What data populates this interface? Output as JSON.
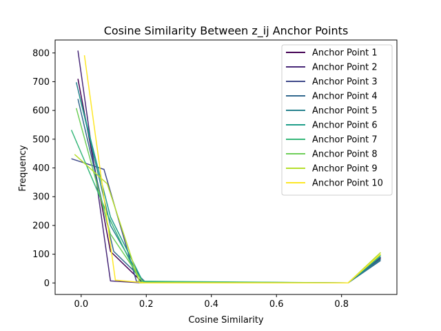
{
  "chart_data": {
    "type": "line",
    "title": "Cosine Similarity Between z_ij Anchor Points",
    "xlabel": "Cosine Similarity",
    "ylabel": "Frequency",
    "xlim": [
      -0.08,
      0.97
    ],
    "ylim": [
      -40,
      845
    ],
    "xticks": [
      0.0,
      0.2,
      0.4,
      0.6,
      0.8
    ],
    "xtick_labels": [
      "0.0",
      "0.2",
      "0.4",
      "0.6",
      "0.8"
    ],
    "yticks": [
      0,
      100,
      200,
      300,
      400,
      500,
      600,
      700,
      800
    ],
    "ytick_labels": [
      "0",
      "100",
      "200",
      "300",
      "400",
      "500",
      "600",
      "700",
      "800"
    ],
    "grid": false,
    "legend_position": "top-right",
    "series": [
      {
        "name": "Anchor Point 1",
        "color": "#440154",
        "points": [
          [
            -0.01,
            710
          ],
          [
            0.09,
            110
          ],
          [
            0.19,
            0
          ],
          [
            0.82,
            0
          ],
          [
            0.92,
            88
          ]
        ]
      },
      {
        "name": "Anchor Point 2",
        "color": "#482878",
        "points": [
          [
            -0.01,
            808
          ],
          [
            0.09,
            7
          ],
          [
            0.19,
            0
          ],
          [
            0.82,
            0
          ],
          [
            0.92,
            90
          ]
        ]
      },
      {
        "name": "Anchor Point 3",
        "color": "#3e4989",
        "points": [
          [
            -0.03,
            432
          ],
          [
            0.07,
            395
          ],
          [
            0.17,
            5
          ],
          [
            0.82,
            0
          ],
          [
            0.92,
            85
          ]
        ]
      },
      {
        "name": "Anchor Point 4",
        "color": "#31688e",
        "points": [
          [
            -0.01,
            640
          ],
          [
            0.1,
            110
          ],
          [
            0.2,
            0
          ],
          [
            0.82,
            0
          ],
          [
            0.92,
            78
          ]
        ]
      },
      {
        "name": "Anchor Point 5",
        "color": "#26828e",
        "points": [
          [
            -0.015,
            698
          ],
          [
            0.09,
            200
          ],
          [
            0.19,
            3
          ],
          [
            0.82,
            0
          ],
          [
            0.92,
            82
          ]
        ]
      },
      {
        "name": "Anchor Point 6",
        "color": "#1f9e89",
        "points": [
          [
            -0.005,
            650
          ],
          [
            0.09,
            230
          ],
          [
            0.19,
            4
          ],
          [
            0.82,
            0
          ],
          [
            0.92,
            92
          ]
        ]
      },
      {
        "name": "Anchor Point 7",
        "color": "#35b779",
        "points": [
          [
            -0.03,
            532
          ],
          [
            0.08,
            240
          ],
          [
            0.18,
            6
          ],
          [
            0.82,
            0
          ],
          [
            0.92,
            97
          ]
        ]
      },
      {
        "name": "Anchor Point 8",
        "color": "#6ece58",
        "points": [
          [
            -0.015,
            608
          ],
          [
            0.09,
            170
          ],
          [
            0.19,
            2
          ],
          [
            0.82,
            0
          ],
          [
            0.92,
            100
          ]
        ]
      },
      {
        "name": "Anchor Point 9",
        "color": "#b5de2b",
        "points": [
          [
            -0.02,
            447
          ],
          [
            0.08,
            345
          ],
          [
            0.18,
            0
          ],
          [
            0.82,
            0
          ],
          [
            0.92,
            106
          ]
        ]
      },
      {
        "name": "Anchor Point 10",
        "color": "#fde725",
        "points": [
          [
            0.01,
            792
          ],
          [
            0.105,
            10
          ],
          [
            0.2,
            0
          ],
          [
            0.82,
            0
          ],
          [
            0.92,
            100
          ]
        ]
      }
    ]
  }
}
